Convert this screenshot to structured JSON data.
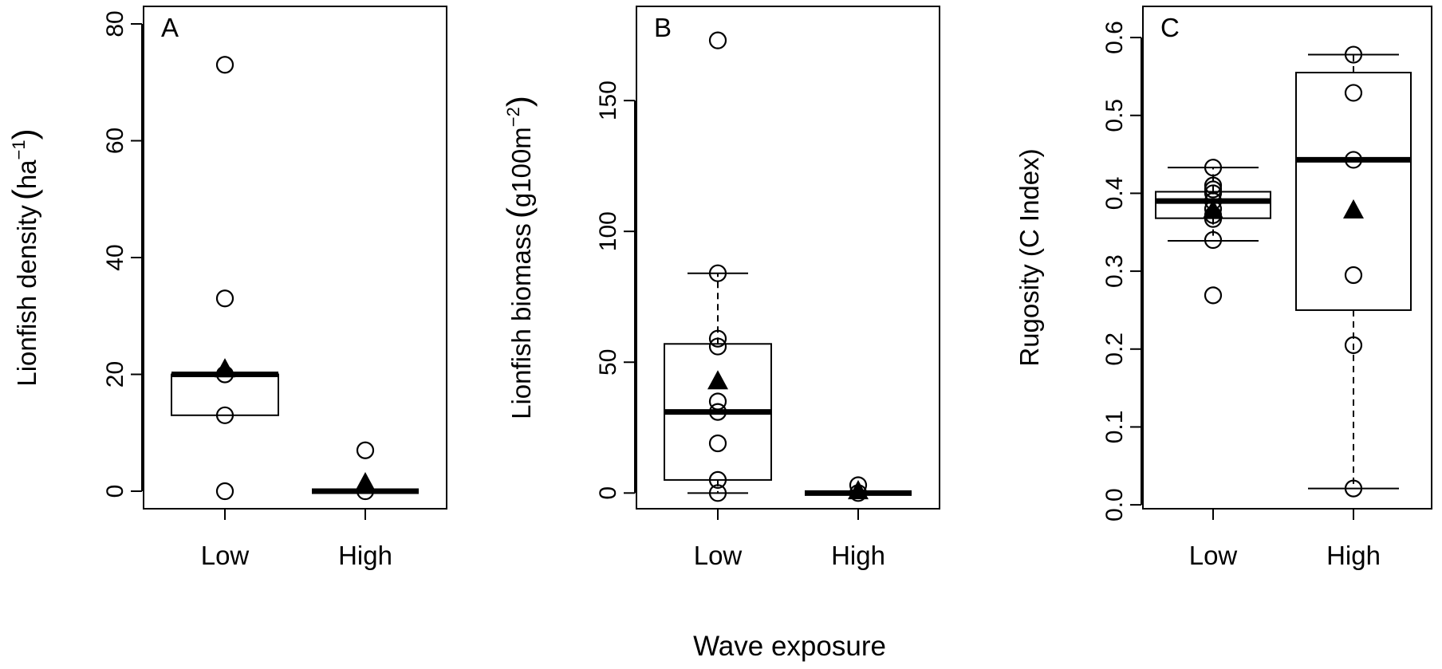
{
  "figure": {
    "x_title": "Wave exposure"
  },
  "chart_data": [
    {
      "type": "box",
      "panel": "A",
      "ylabel": "Lionfish density",
      "ylabel_unit_base": "ha",
      "ylabel_unit_sup": "−1",
      "ylim": [
        -3,
        83
      ],
      "yticks": [
        0,
        20,
        40,
        60,
        80
      ],
      "categories": [
        "Low",
        "High"
      ],
      "groups": [
        {
          "category": "Low",
          "box": [
            13,
            20
          ],
          "median": 20,
          "whisker": null,
          "points": [
            73,
            33,
            20,
            13,
            0
          ],
          "mean": 21
        },
        {
          "category": "High",
          "box": [
            0,
            0
          ],
          "median": 0,
          "whisker": null,
          "points": [
            7,
            0
          ],
          "mean": 1.5
        }
      ]
    },
    {
      "type": "box",
      "panel": "B",
      "ylabel": "Lionfish biomass",
      "ylabel_unit_base": "g100m",
      "ylabel_unit_sup": "−2",
      "ylim": [
        -6,
        186
      ],
      "yticks": [
        0,
        50,
        100,
        150
      ],
      "categories": [
        "Low",
        "High"
      ],
      "groups": [
        {
          "category": "Low",
          "box": [
            5,
            57
          ],
          "median": 31,
          "whisker": [
            0,
            84
          ],
          "points": [
            173,
            84,
            59,
            56,
            35,
            31,
            19,
            5,
            0
          ],
          "mean": 43
        },
        {
          "category": "High",
          "box": [
            0,
            0
          ],
          "median": 0,
          "whisker": null,
          "points": [
            3,
            0
          ],
          "mean": 1
        }
      ]
    },
    {
      "type": "box",
      "panel": "C",
      "ylabel": "Rugosity (C Index)",
      "ylim": [
        -0.005,
        0.64
      ],
      "yticks": [
        0.0,
        0.1,
        0.2,
        0.3,
        0.4,
        0.5,
        0.6
      ],
      "ytick_labels": [
        "0.0",
        "0.1",
        "0.2",
        "0.3",
        "0.4",
        "0.5",
        "0.6"
      ],
      "categories": [
        "Low",
        "High"
      ],
      "groups": [
        {
          "category": "Low",
          "box": [
            0.368,
            0.402
          ],
          "median": 0.39,
          "whisker": [
            0.339,
            0.433
          ],
          "points": [
            0.433,
            0.41,
            0.405,
            0.4,
            0.39,
            0.38,
            0.372,
            0.367,
            0.34,
            0.269
          ],
          "mean": 0.379
        },
        {
          "category": "High",
          "box": [
            0.25,
            0.555
          ],
          "median": 0.443,
          "whisker": [
            0.021,
            0.578
          ],
          "points": [
            0.578,
            0.529,
            0.443,
            0.295,
            0.205,
            0.021
          ],
          "mean": 0.379
        }
      ]
    }
  ]
}
